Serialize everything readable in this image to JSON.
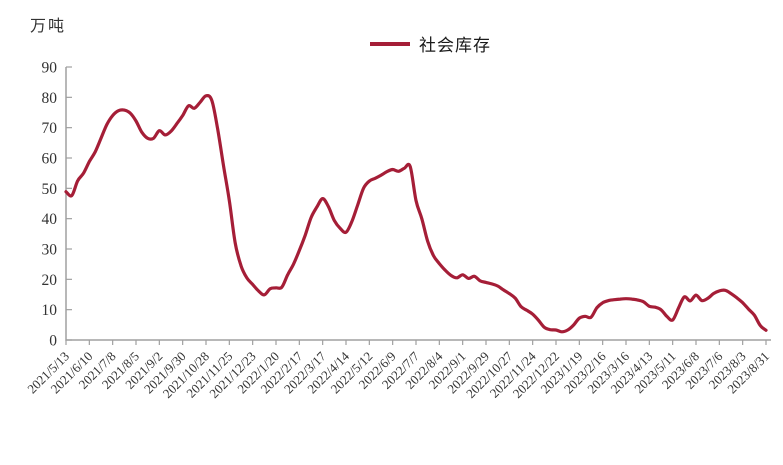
{
  "chart_data": {
    "type": "line",
    "title": "",
    "unit": "万吨",
    "series_name": "社会库存",
    "legend_position": "top-center",
    "grid": false,
    "ylim": [
      0,
      90
    ],
    "y_tick_step": 10,
    "line_color": "#A51E37",
    "axis_color": "#A0A0A0",
    "text_color": "#333333",
    "x_frequency": "weekly points, one tick label every 4 weeks",
    "x_tick_labels": [
      "2021/5/13",
      "2021/6/10",
      "2021/7/8",
      "2021/8/5",
      "2021/9/2",
      "2021/9/30",
      "2021/10/28",
      "2021/11/25",
      "2021/12/23",
      "2022/1/20",
      "2022/2/17",
      "2022/3/17",
      "2022/4/14",
      "2022/5/12",
      "2022/6/9",
      "2022/7/7",
      "2022/8/4",
      "2022/9/1",
      "2022/9/29",
      "2022/10/27",
      "2022/11/24",
      "2022/12/22",
      "2023/1/19",
      "2023/2/16",
      "2023/3/16",
      "2023/4/13",
      "2023/5/11",
      "2023/6/8",
      "2023/7/6",
      "2023/8/3",
      "2023/8/31"
    ],
    "values": [
      48.9,
      47.6,
      52.5,
      55.0,
      58.8,
      62.0,
      66.5,
      71.0,
      74.0,
      75.6,
      75.8,
      74.8,
      72.2,
      68.5,
      66.5,
      66.5,
      69.0,
      67.6,
      68.8,
      71.3,
      74.0,
      77.2,
      76.4,
      78.4,
      80.5,
      79.0,
      69.5,
      57.5,
      46.0,
      32.0,
      24.5,
      20.5,
      18.3,
      16.2,
      14.9,
      16.9,
      17.2,
      17.4,
      21.5,
      25.0,
      29.5,
      34.5,
      40.3,
      43.8,
      46.6,
      43.9,
      39.4,
      36.8,
      35.5,
      39.0,
      44.5,
      50.0,
      52.4,
      53.3,
      54.3,
      55.5,
      56.2,
      55.6,
      56.6,
      57.2,
      46.0,
      40.0,
      32.5,
      27.8,
      25.2,
      23.0,
      21.3,
      20.5,
      21.5,
      20.3,
      21.0,
      19.5,
      19.0,
      18.5,
      17.8,
      16.5,
      15.3,
      13.8,
      11.0,
      9.8,
      8.5,
      6.5,
      4.2,
      3.4,
      3.3,
      2.7,
      3.3,
      4.9,
      7.2,
      7.8,
      7.5,
      10.6,
      12.3,
      13.0,
      13.3,
      13.5,
      13.6,
      13.5,
      13.2,
      12.6,
      11.1,
      10.8,
      10.0,
      7.8,
      6.6,
      10.5,
      14.2,
      12.9,
      14.8,
      13.0,
      13.7,
      15.3,
      16.2,
      16.4,
      15.3,
      13.9,
      12.3,
      10.2,
      8.2,
      4.8,
      3.2
    ]
  }
}
